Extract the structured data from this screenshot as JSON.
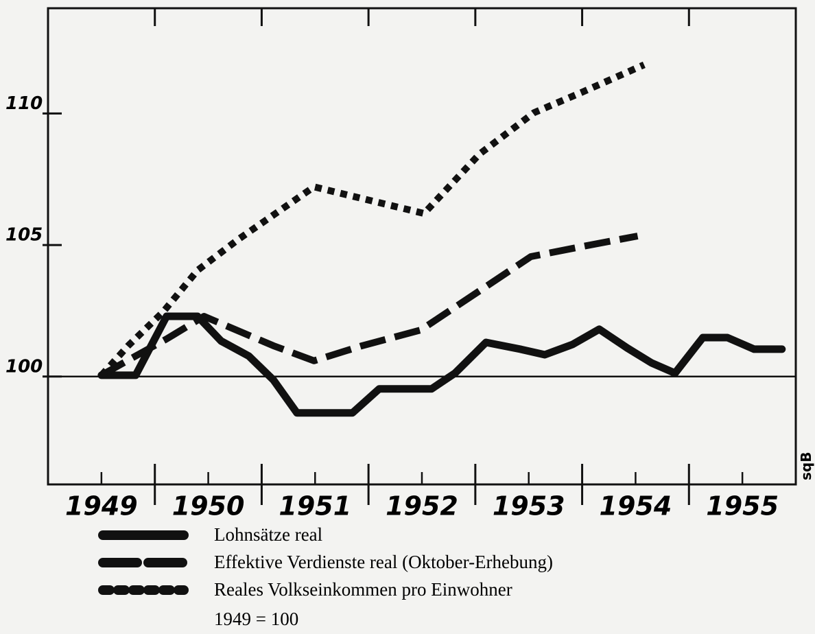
{
  "chart_data": {
    "type": "line",
    "xlim": [
      1949,
      1956
    ],
    "ylim": [
      95.9,
      114
    ],
    "yticks": [
      100,
      105,
      110
    ],
    "xticks": [
      {
        "value": 1949.5,
        "label": "1949"
      },
      {
        "value": 1950.5,
        "label": "1950"
      },
      {
        "value": 1951.5,
        "label": "1951"
      },
      {
        "value": 1952.5,
        "label": "1952"
      },
      {
        "value": 1953.5,
        "label": "1953"
      },
      {
        "value": 1954.5,
        "label": "1954"
      },
      {
        "value": 1955.5,
        "label": "1955"
      }
    ],
    "major_ticks": [
      1950,
      1951,
      1952,
      1953,
      1954,
      1955
    ],
    "reference_line": 100,
    "series": [
      {
        "name": "Lohnsätze real",
        "color": "#111111",
        "style": "solid",
        "x": [
          1949.5,
          1949.82,
          1950.11,
          1950.4,
          1950.62,
          1950.88,
          1951.11,
          1951.33,
          1951.85,
          1952.1,
          1952.59,
          1952.81,
          1953.1,
          1953.42,
          1953.65,
          1953.91,
          1954.16,
          1954.42,
          1954.65,
          1954.87,
          1955.13,
          1955.36,
          1955.61,
          1955.87
        ],
        "values": [
          100.05,
          100.05,
          102.29,
          102.29,
          101.35,
          100.78,
          99.87,
          98.62,
          98.62,
          99.53,
          99.53,
          100.13,
          101.3,
          101.04,
          100.83,
          101.22,
          101.8,
          101.09,
          100.52,
          100.13,
          101.48,
          101.48,
          101.04,
          101.04
        ]
      },
      {
        "name": "Effektive Verdienste real (Oktober-Erhebung)",
        "color": "#111111",
        "style": "dashed",
        "x": [
          1949.5,
          1949.82,
          1950.11,
          1950.46,
          1951.11,
          1951.49,
          1951.94,
          1952.49,
          1953.04,
          1953.52,
          1954.01,
          1954.52
        ],
        "values": [
          100.05,
          100.78,
          101.43,
          102.29,
          101.17,
          100.6,
          101.17,
          101.77,
          103.26,
          104.56,
          104.95,
          105.34
        ]
      },
      {
        "name": "Reales Volkseinkommen pro Einwohner",
        "color": "#111111",
        "style": "dotted",
        "x": [
          1949.5,
          1949.75,
          1950.08,
          1950.4,
          1950.78,
          1951.49,
          1952.07,
          1952.52,
          1953.04,
          1953.55,
          1954.0,
          1954.58
        ],
        "values": [
          100.05,
          101.17,
          102.47,
          104.04,
          105.21,
          107.21,
          106.64,
          106.2,
          108.46,
          110.03,
          110.81,
          111.85
        ]
      }
    ],
    "note": "1949 = 100",
    "source_mark": "sqB"
  }
}
